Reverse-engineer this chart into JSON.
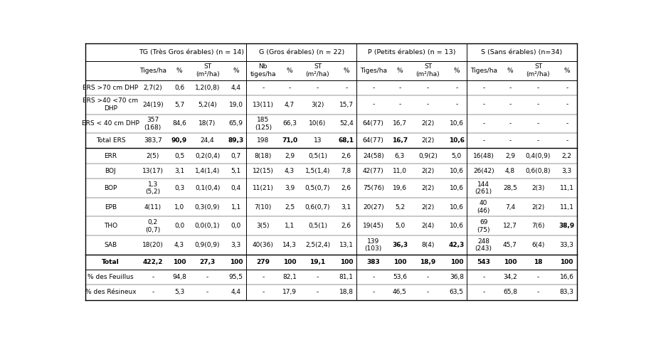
{
  "group_labels": [
    "TG (Très Gros érables) (n = 14)",
    "G (Gros érables) (n = 22)",
    "P (Petits érables) (n = 13)",
    "S (Sans érables) (n=34)"
  ],
  "sub_headers": [
    "Tiges/ha",
    "%",
    "ST\n(m²/ha)",
    "%",
    "Nb\ntiges/ha",
    "%",
    "ST\n(m²/ha)",
    "%",
    "Tiges/ha",
    "%",
    "ST\n(m²/ha)",
    "%",
    "Tiges/ha",
    "%",
    "ST\n(m²/ha)",
    "%"
  ],
  "rows": [
    {
      "label": "ERS >70 cm DHP",
      "label_multiline": false,
      "values": [
        "2,7(2)",
        "0,6",
        "1,2(0,8)",
        "4,4",
        "-",
        "-",
        "-",
        "-",
        "-",
        "-",
        "-",
        "-",
        "-",
        "-",
        "-",
        "-"
      ],
      "bold_label": false,
      "bold_vals": [],
      "top_line": true,
      "top_line_thick": false
    },
    {
      "label": "ERS >40 <70 cm\nDHP",
      "label_multiline": true,
      "values": [
        "24(19)",
        "5,7",
        "5,2(4)",
        "19,0",
        "13(11)",
        "4,7",
        "3(2)",
        "15,7",
        "-",
        "-",
        "-",
        "-",
        "-",
        "-",
        "-",
        "-"
      ],
      "bold_label": false,
      "bold_vals": [],
      "top_line": false,
      "top_line_thick": false
    },
    {
      "label": "ERS < 40 cm DHP",
      "label_multiline": false,
      "values": [
        "357\n(168)",
        "84,6",
        "18(7)",
        "65,9",
        "185\n(125)",
        "66,3",
        "10(6)",
        "52,4",
        "64(77)",
        "16,7",
        "2(2)",
        "10,6",
        "-",
        "-",
        "-",
        "-"
      ],
      "bold_label": false,
      "bold_vals": [],
      "top_line": false,
      "top_line_thick": false
    },
    {
      "label": "Total ERS",
      "label_multiline": false,
      "values": [
        "383,7",
        "90,9",
        "24,4",
        "89,3",
        "198",
        "71,0",
        "13",
        "68,1",
        "64(77)",
        "16,7",
        "2(2)",
        "10,6",
        "-",
        "-",
        "-",
        "-"
      ],
      "bold_label": false,
      "bold_vals": [
        1,
        3,
        5,
        7,
        9,
        11
      ],
      "top_line": false,
      "top_line_thick": false
    },
    {
      "label": "ERR",
      "label_multiline": false,
      "values": [
        "2(5)",
        "0,5",
        "0,2(0,4)",
        "0,7",
        "8(18)",
        "2,9",
        "0,5(1)",
        "2,6",
        "24(58)",
        "6,3",
        "0,9(2)",
        "5,0",
        "16(48)",
        "2,9",
        "0,4(0,9)",
        "2,2"
      ],
      "bold_label": false,
      "bold_vals": [],
      "top_line": true,
      "top_line_thick": true
    },
    {
      "label": "BOJ",
      "label_multiline": false,
      "values": [
        "13(17)",
        "3,1",
        "1,4(1,4)",
        "5,1",
        "12(15)",
        "4,3",
        "1,5(1,4)",
        "7,8",
        "42(77)",
        "11,0",
        "2(2)",
        "10,6",
        "26(42)",
        "4,8",
        "0,6(0,8)",
        "3,3"
      ],
      "bold_label": false,
      "bold_vals": [],
      "top_line": false,
      "top_line_thick": false
    },
    {
      "label": "BOP",
      "label_multiline": false,
      "values": [
        "1,3\n(5,2)",
        "0,3",
        "0,1(0,4)",
        "0,4",
        "11(21)",
        "3,9",
        "0,5(0,7)",
        "2,6",
        "75(76)",
        "19,6",
        "2(2)",
        "10,6",
        "144\n(261)",
        "28,5",
        "2(3)",
        "11,1"
      ],
      "bold_label": false,
      "bold_vals": [],
      "top_line": false,
      "top_line_thick": false
    },
    {
      "label": "EPB",
      "label_multiline": false,
      "values": [
        "4(11)",
        "1,0",
        "0,3(0,9)",
        "1,1",
        "7(10)",
        "2,5",
        "0,6(0,7)",
        "3,1",
        "20(27)",
        "5,2",
        "2(2)",
        "10,6",
        "40\n(46)",
        "7,4",
        "2(2)",
        "11,1"
      ],
      "bold_label": false,
      "bold_vals": [],
      "top_line": false,
      "top_line_thick": false
    },
    {
      "label": "THO",
      "label_multiline": false,
      "values": [
        "0,2\n(0,7)",
        "0,0",
        "0,0(0,1)",
        "0,0",
        "3(5)",
        "1,1",
        "0,5(1)",
        "2,6",
        "19(45)",
        "5,0",
        "2(4)",
        "10,6",
        "69\n(75)",
        "12,7",
        "7(6)",
        "38,9"
      ],
      "bold_label": false,
      "bold_vals": [
        15
      ],
      "top_line": false,
      "top_line_thick": false
    },
    {
      "label": "SAB",
      "label_multiline": false,
      "values": [
        "18(20)",
        "4,3",
        "0,9(0,9)",
        "3,3",
        "40(36)",
        "14,3",
        "2,5(2,4)",
        "13,1",
        "139\n(103)",
        "36,3",
        "8(4)",
        "42,3",
        "248\n(243)",
        "45,7",
        "6(4)",
        "33,3"
      ],
      "bold_label": false,
      "bold_vals": [
        9,
        11
      ],
      "top_line": false,
      "top_line_thick": false
    },
    {
      "label": "Total",
      "label_multiline": false,
      "values": [
        "422,2",
        "100",
        "27,3",
        "100",
        "279",
        "100",
        "19,1",
        "100",
        "383",
        "100",
        "18,9",
        "100",
        "543",
        "100",
        "18",
        "100"
      ],
      "bold_label": true,
      "bold_vals": [
        0,
        1,
        2,
        3,
        4,
        5,
        6,
        7,
        8,
        9,
        10,
        11,
        12,
        13,
        14,
        15
      ],
      "top_line": true,
      "top_line_thick": true
    },
    {
      "label": "% des Feuillus",
      "label_multiline": false,
      "values": [
        "-",
        "94,8",
        "-",
        "95,5",
        "-",
        "82,1",
        "-",
        "81,1",
        "-",
        "53,6",
        "-",
        "36,8",
        "-",
        "34,2",
        "-",
        "16,6"
      ],
      "bold_label": false,
      "bold_vals": [],
      "top_line": true,
      "top_line_thick": false
    },
    {
      "label": "% des Résineux",
      "label_multiline": false,
      "values": [
        "-",
        "5,3",
        "-",
        "4,4",
        "-",
        "17,9",
        "-",
        "18,8",
        "-",
        "46,5",
        "-",
        "63,5",
        "-",
        "65,8",
        "-",
        "83,3"
      ],
      "bold_label": false,
      "bold_vals": [],
      "top_line": false,
      "top_line_thick": false
    }
  ],
  "bg_color": "#ffffff",
  "font_size": 6.5,
  "header_font_size": 6.8
}
